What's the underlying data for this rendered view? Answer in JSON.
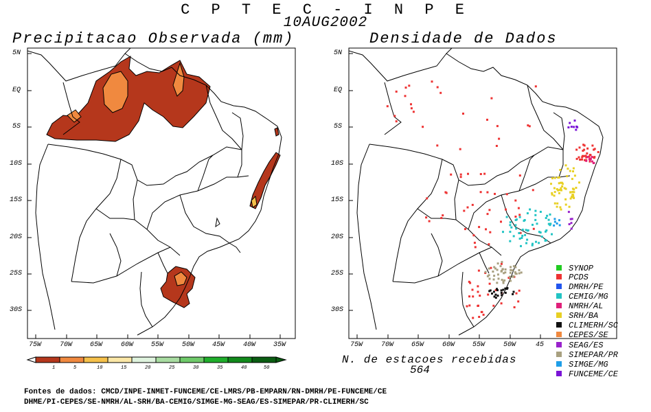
{
  "header": {
    "title": "C P T E C - I N P E",
    "date": "10AUG2002"
  },
  "left_panel": {
    "title": "Precipitacao Observada (mm)",
    "lat_labels": [
      "5N",
      "EQ",
      "5S",
      "10S",
      "15S",
      "20S",
      "25S",
      "30S"
    ],
    "lon_labels": [
      "75W",
      "70W",
      "65W",
      "60W",
      "55W",
      "50W",
      "45W",
      "40W",
      "35W"
    ],
    "colorbar": {
      "ticks": [
        "1",
        "5",
        "10",
        "15",
        "20",
        "25",
        "30",
        "35",
        "40",
        "50"
      ],
      "colors": [
        "#b5371c",
        "#f0893f",
        "#f5c04a",
        "#fbe7a6",
        "#dff3de",
        "#a8dca1",
        "#6fca6a",
        "#1fae2b",
        "#118a1b",
        "#0a5d12"
      ]
    },
    "regions_colors": {
      "dark": "#b5371c",
      "light": "#f0893f",
      "yellow": "#f5c04a"
    }
  },
  "right_panel": {
    "title": "Densidade de Dados",
    "lat_labels": [
      "5N",
      "EQ",
      "5S",
      "10S",
      "15S",
      "20S",
      "25S",
      "30S"
    ],
    "lon_labels": [
      "75W",
      "70W",
      "65W",
      "60W",
      "55W",
      "50W",
      "45"
    ],
    "count_label": "N. de estacoes recebidas",
    "count_value": "564",
    "legend": [
      {
        "label": "SYNOP",
        "color": "#22cc22"
      },
      {
        "label": "PCDS",
        "color": "#ee3333"
      },
      {
        "label": "DMRH/PE",
        "color": "#2255ee"
      },
      {
        "label": "CEMIG/MG",
        "color": "#22c4c4"
      },
      {
        "label": "NMRH/AL",
        "color": "#e0207a"
      },
      {
        "label": "SRH/BA",
        "color": "#e8d024"
      },
      {
        "label": "CLIMERH/SC",
        "color": "#111111"
      },
      {
        "label": "CEPES/SE",
        "color": "#f0893f"
      },
      {
        "label": "SEAG/ES",
        "color": "#9922cc"
      },
      {
        "label": "SIMEPAR/PR",
        "color": "#a8a080"
      },
      {
        "label": "SIMGE/MG",
        "color": "#1e9ee8"
      },
      {
        "label": "FUNCEME/CE",
        "color": "#7a14d6"
      }
    ]
  },
  "sources": {
    "line1": "Fontes de dados: CMCD/INPE-INMET-FUNCEME/CE-LMRS/PB-EMPARN/RN-DMRH/PE-FUNCEME/CE",
    "line2": "DHME/PI-CEPES/SE-NMRH/AL-SRH/BA-CEMIG/SIMGE-MG-SEAG/ES-SIMEPAR/PR-CLIMERH/SC"
  }
}
